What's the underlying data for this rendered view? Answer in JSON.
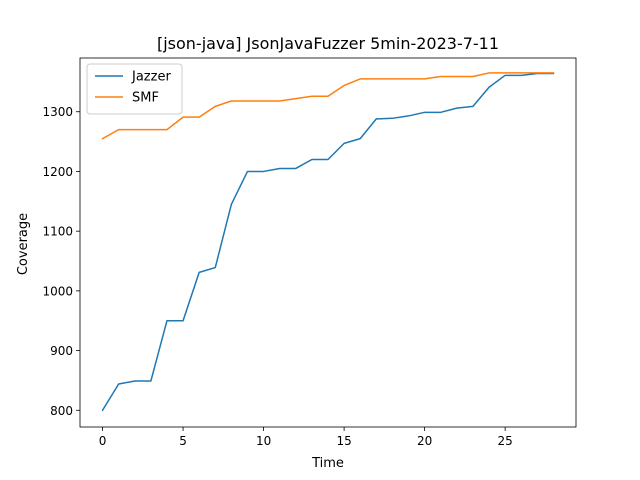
{
  "chart_data": {
    "type": "line",
    "title": "[json-java] JsonJavaFuzzer 5min-2023-7-11",
    "xlabel": "Time",
    "ylabel": "Coverage",
    "xlim": [
      -1.4,
      29.4
    ],
    "ylim": [
      772,
      1390
    ],
    "xticks": [
      0,
      5,
      10,
      15,
      20,
      25
    ],
    "yticks": [
      800,
      900,
      1000,
      1100,
      1200,
      1300
    ],
    "grid": false,
    "legend_position": "top-left",
    "x": [
      0,
      1,
      2,
      3,
      4,
      5,
      6,
      7,
      8,
      9,
      10,
      11,
      12,
      13,
      14,
      15,
      16,
      17,
      18,
      19,
      20,
      21,
      22,
      23,
      24,
      25,
      26,
      27,
      28
    ],
    "series": [
      {
        "name": "Jazzer",
        "color": "#1f77b4",
        "values": [
          800,
          844,
          849,
          849,
          950,
          950,
          1031,
          1039,
          1145,
          1200,
          1200,
          1205,
          1205,
          1220,
          1220,
          1247,
          1255,
          1288,
          1289,
          1293,
          1299,
          1299,
          1306,
          1309,
          1341,
          1361,
          1361,
          1364,
          1364
        ]
      },
      {
        "name": "SMF",
        "color": "#ff7f0e",
        "values": [
          1255,
          1270,
          1270,
          1270,
          1270,
          1291,
          1291,
          1309,
          1318,
          1318,
          1318,
          1318,
          1322,
          1326,
          1326,
          1344,
          1355,
          1355,
          1355,
          1355,
          1355,
          1359,
          1359,
          1359,
          1365,
          1365,
          1365,
          1365,
          1365
        ]
      }
    ]
  }
}
